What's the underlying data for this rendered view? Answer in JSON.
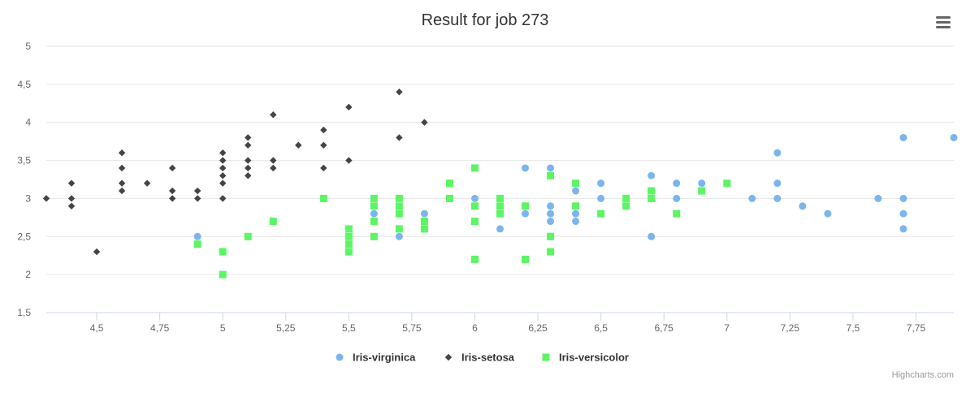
{
  "chart_data": {
    "type": "scatter",
    "title": "Result for job 273",
    "xlabel": "",
    "ylabel": "",
    "xlim": [
      4.3,
      7.9
    ],
    "ylim": [
      1.5,
      5
    ],
    "x_ticks": [
      {
        "v": 4.5,
        "label": "4,5"
      },
      {
        "v": 4.75,
        "label": "4,75"
      },
      {
        "v": 5,
        "label": "5"
      },
      {
        "v": 5.25,
        "label": "5,25"
      },
      {
        "v": 5.5,
        "label": "5,5"
      },
      {
        "v": 5.75,
        "label": "5,75"
      },
      {
        "v": 6,
        "label": "6"
      },
      {
        "v": 6.25,
        "label": "6,25"
      },
      {
        "v": 6.5,
        "label": "6,5"
      },
      {
        "v": 6.75,
        "label": "6,75"
      },
      {
        "v": 7,
        "label": "7"
      },
      {
        "v": 7.25,
        "label": "7,25"
      },
      {
        "v": 7.5,
        "label": "7,5"
      },
      {
        "v": 7.75,
        "label": "7,75"
      }
    ],
    "y_ticks": [
      {
        "v": 1.5,
        "label": "1,5"
      },
      {
        "v": 2,
        "label": "2"
      },
      {
        "v": 2.5,
        "label": "2,5"
      },
      {
        "v": 3,
        "label": "3"
      },
      {
        "v": 3.5,
        "label": "3,5"
      },
      {
        "v": 4,
        "label": "4"
      },
      {
        "v": 4.5,
        "label": "4,5"
      },
      {
        "v": 5,
        "label": "5"
      }
    ],
    "grid": true,
    "legend_position": "bottom-center",
    "credits": "Highcharts.com",
    "series": [
      {
        "name": "Iris-virginica",
        "marker": "circle",
        "color": "#7cb5ec",
        "points": [
          [
            4.9,
            2.5
          ],
          [
            5.6,
            2.8
          ],
          [
            5.7,
            2.5
          ],
          [
            5.8,
            2.8
          ],
          [
            6,
            3
          ],
          [
            6.1,
            2.6
          ],
          [
            6.1,
            3
          ],
          [
            6.2,
            3.4
          ],
          [
            6.2,
            2.8
          ],
          [
            6.3,
            3.4
          ],
          [
            6.3,
            2.9
          ],
          [
            6.3,
            2.8
          ],
          [
            6.3,
            2.7
          ],
          [
            6.3,
            2.5
          ],
          [
            6.4,
            3.1
          ],
          [
            6.4,
            2.8
          ],
          [
            6.4,
            2.7
          ],
          [
            6.5,
            3.2
          ],
          [
            6.5,
            3
          ],
          [
            6.7,
            3.3
          ],
          [
            6.7,
            3.1
          ],
          [
            6.7,
            2.5
          ],
          [
            6.8,
            3.2
          ],
          [
            6.8,
            3
          ],
          [
            6.9,
            3.2
          ],
          [
            7.1,
            3
          ],
          [
            7.2,
            3.6
          ],
          [
            7.2,
            3.2
          ],
          [
            7.2,
            3
          ],
          [
            7.3,
            2.9
          ],
          [
            7.4,
            2.8
          ],
          [
            7.6,
            3
          ],
          [
            7.7,
            3.8
          ],
          [
            7.7,
            3
          ],
          [
            7.7,
            2.8
          ],
          [
            7.7,
            2.6
          ],
          [
            7.9,
            3.8
          ]
        ]
      },
      {
        "name": "Iris-setosa",
        "marker": "diamond",
        "color": "#434348",
        "points": [
          [
            4.3,
            3
          ],
          [
            4.4,
            3.2
          ],
          [
            4.4,
            3
          ],
          [
            4.4,
            2.9
          ],
          [
            4.5,
            2.3
          ],
          [
            4.6,
            3.6
          ],
          [
            4.6,
            3.4
          ],
          [
            4.6,
            3.2
          ],
          [
            4.6,
            3.1
          ],
          [
            4.7,
            3.2
          ],
          [
            4.8,
            3.4
          ],
          [
            4.8,
            3.1
          ],
          [
            4.8,
            3
          ],
          [
            4.9,
            3.1
          ],
          [
            4.9,
            3
          ],
          [
            5,
            3.6
          ],
          [
            5,
            3.5
          ],
          [
            5,
            3.4
          ],
          [
            5,
            3.3
          ],
          [
            5,
            3.2
          ],
          [
            5,
            3
          ],
          [
            5.1,
            3.8
          ],
          [
            5.1,
            3.7
          ],
          [
            5.1,
            3.5
          ],
          [
            5.1,
            3.4
          ],
          [
            5.1,
            3.3
          ],
          [
            5.2,
            4.1
          ],
          [
            5.2,
            3.5
          ],
          [
            5.2,
            3.4
          ],
          [
            5.3,
            3.7
          ],
          [
            5.4,
            3.9
          ],
          [
            5.4,
            3.7
          ],
          [
            5.4,
            3.4
          ],
          [
            5.5,
            4.2
          ],
          [
            5.5,
            3.5
          ],
          [
            5.7,
            4.4
          ],
          [
            5.7,
            3.8
          ],
          [
            5.8,
            4
          ]
        ]
      },
      {
        "name": "Iris-versicolor",
        "marker": "square",
        "color": "#5cf564",
        "points": [
          [
            4.9,
            2.4
          ],
          [
            5,
            2.3
          ],
          [
            5,
            2
          ],
          [
            5.1,
            2.5
          ],
          [
            5.2,
            2.7
          ],
          [
            5.4,
            3
          ],
          [
            5.5,
            2.6
          ],
          [
            5.5,
            2.5
          ],
          [
            5.5,
            2.4
          ],
          [
            5.5,
            2.3
          ],
          [
            5.6,
            3
          ],
          [
            5.6,
            2.9
          ],
          [
            5.6,
            2.7
          ],
          [
            5.6,
            2.5
          ],
          [
            5.7,
            3
          ],
          [
            5.7,
            2.9
          ],
          [
            5.7,
            2.8
          ],
          [
            5.7,
            2.6
          ],
          [
            5.8,
            2.7
          ],
          [
            5.8,
            2.6
          ],
          [
            5.9,
            3.2
          ],
          [
            5.9,
            3
          ],
          [
            6,
            3.4
          ],
          [
            6,
            2.9
          ],
          [
            6,
            2.7
          ],
          [
            6,
            2.2
          ],
          [
            6.1,
            3
          ],
          [
            6.1,
            2.9
          ],
          [
            6.1,
            2.8
          ],
          [
            6.2,
            2.9
          ],
          [
            6.2,
            2.2
          ],
          [
            6.3,
            3.3
          ],
          [
            6.3,
            2.5
          ],
          [
            6.3,
            2.3
          ],
          [
            6.4,
            3.2
          ],
          [
            6.4,
            2.9
          ],
          [
            6.5,
            2.8
          ],
          [
            6.6,
            3
          ],
          [
            6.6,
            2.9
          ],
          [
            6.7,
            3.1
          ],
          [
            6.7,
            3
          ],
          [
            6.8,
            2.8
          ],
          [
            6.9,
            3.1
          ],
          [
            7,
            3.2
          ]
        ]
      }
    ]
  }
}
